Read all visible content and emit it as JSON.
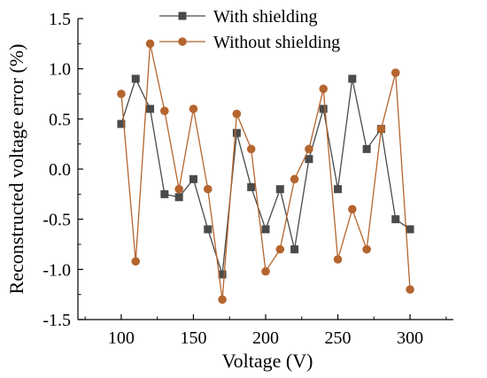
{
  "chart_data": {
    "type": "line",
    "xlabel": "Voltage (V)",
    "ylabel": "Reconstructed voltage error (%)",
    "xlim": [
      70,
      330
    ],
    "ylim": [
      -1.5,
      1.5
    ],
    "x_ticks": [
      100,
      150,
      200,
      250,
      300
    ],
    "y_ticks": [
      -1.5,
      -1.0,
      -0.5,
      0.0,
      0.5,
      1.0,
      1.5
    ],
    "x_tick_labels": [
      "100",
      "150",
      "200",
      "250",
      "300"
    ],
    "y_tick_labels": [
      "-1.5",
      "-1.0",
      "-0.5",
      "0.0",
      "0.5",
      "1.0",
      "1.5"
    ],
    "grid": false,
    "legend_position": "top-right",
    "x": [
      100,
      110,
      120,
      130,
      140,
      150,
      160,
      170,
      180,
      190,
      200,
      210,
      220,
      230,
      240,
      250,
      260,
      270,
      280,
      290,
      300
    ],
    "series": [
      {
        "name": "With shielding",
        "color": "#4a4a4a",
        "marker": "square",
        "values": [
          0.45,
          0.9,
          0.6,
          -0.25,
          -0.28,
          -0.1,
          -0.6,
          -1.05,
          0.36,
          -0.18,
          -0.6,
          -0.2,
          -0.8,
          0.1,
          0.6,
          -0.2,
          0.9,
          0.2,
          0.4,
          -0.5,
          -0.6
        ]
      },
      {
        "name": "Without shielding",
        "color": "#b5652e",
        "marker": "circle",
        "values": [
          0.75,
          -0.92,
          1.25,
          0.58,
          -0.2,
          0.6,
          -0.2,
          -1.3,
          0.55,
          0.2,
          -1.02,
          -0.8,
          -0.1,
          0.2,
          0.8,
          -0.9,
          -0.4,
          -0.8,
          0.4,
          0.96,
          -1.2
        ]
      }
    ]
  }
}
